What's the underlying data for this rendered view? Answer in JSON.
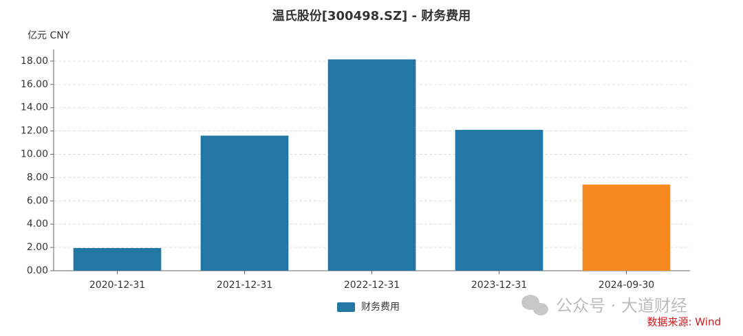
{
  "chart_data": {
    "type": "bar",
    "title": "温氏股份[300498.SZ] - 财务费用",
    "y_unit_label": "亿元  CNY",
    "categories": [
      "2020-12-31",
      "2021-12-31",
      "2022-12-31",
      "2023-12-31",
      "2024-09-30"
    ],
    "series": [
      {
        "name": "财务费用",
        "color": "#2277a5",
        "values": [
          1.95,
          11.6,
          18.15,
          12.1,
          7.4
        ],
        "colors": [
          "#2277a5",
          "#2277a5",
          "#2277a5",
          "#2277a5",
          "#f5891e"
        ]
      }
    ],
    "ylim": [
      0,
      19
    ],
    "yticks": [
      {
        "value": 0,
        "label": "0.00"
      },
      {
        "value": 2,
        "label": "2.00"
      },
      {
        "value": 4,
        "label": "4.00"
      },
      {
        "value": 6,
        "label": "6.00"
      },
      {
        "value": 8,
        "label": "8.00"
      },
      {
        "value": 10,
        "label": "10.00"
      },
      {
        "value": 12,
        "label": "12.00"
      },
      {
        "value": 14,
        "label": "14.00"
      },
      {
        "value": 16,
        "label": "16.00"
      },
      {
        "value": 18,
        "label": "18.00"
      }
    ],
    "grid": true,
    "legend": "bottom",
    "watermark": "公众号 · 大道财经",
    "source": "数据来源: Wind"
  }
}
